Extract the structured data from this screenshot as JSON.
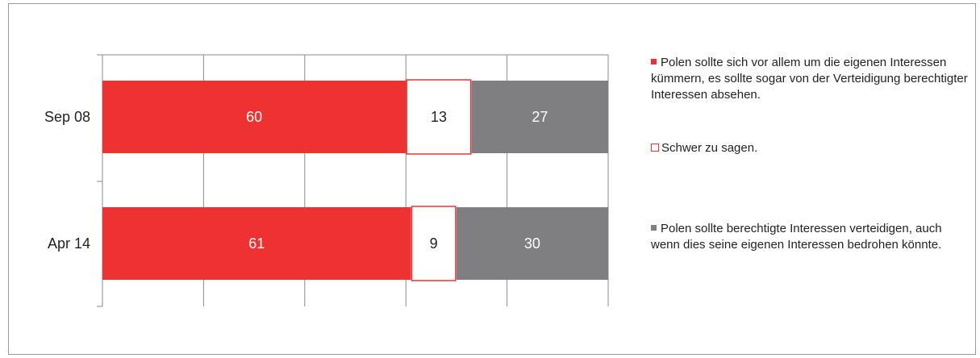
{
  "chart_data": {
    "type": "bar",
    "orientation": "horizontal",
    "stacked": true,
    "categories": [
      "Sep 08",
      "Apr 14"
    ],
    "xlim": [
      0,
      100
    ],
    "grid": true,
    "legend_position": "right",
    "series": [
      {
        "name": "Polen sollte sich vor allem um die eigenen Interessen kümmern, es sollte sogar von der Verteidigung berechtigter Interessen absehen.",
        "values": [
          60,
          61
        ],
        "color": "#ee3231",
        "style": "filled"
      },
      {
        "name": "Schwer zu sagen.",
        "values": [
          13,
          9
        ],
        "color": "#ee3231",
        "style": "outline"
      },
      {
        "name": "Polen sollte berechtigte Interessen verteidigen, auch wenn dies seine eigenen Interessen bedrohen könnte.",
        "values": [
          27,
          30
        ],
        "color": "#7f7f82",
        "style": "filled"
      }
    ]
  }
}
